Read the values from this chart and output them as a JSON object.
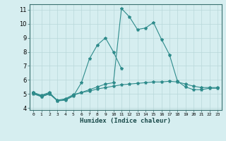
{
  "xlabel": "Humidex (Indice chaleur)",
  "ylabel": "",
  "bg_color": "#d6eef0",
  "grid_color": "#b8d8da",
  "line_color": "#2e8b8b",
  "xlim": [
    -0.5,
    23.5
  ],
  "ylim": [
    3.85,
    11.4
  ],
  "yticks": [
    4,
    5,
    6,
    7,
    8,
    9,
    10,
    11
  ],
  "xticks": [
    0,
    1,
    2,
    3,
    4,
    5,
    6,
    7,
    8,
    9,
    10,
    11,
    12,
    13,
    14,
    15,
    16,
    17,
    18,
    19,
    20,
    21,
    22,
    23
  ],
  "series": [
    {
      "x": [
        0,
        1,
        2
      ],
      "y": [
        5.1,
        4.8,
        5.0
      ]
    },
    {
      "x": [
        0,
        1,
        2,
        3,
        4,
        5,
        6,
        7,
        8,
        9,
        10,
        11
      ],
      "y": [
        5.0,
        4.8,
        5.0,
        4.5,
        4.55,
        4.85,
        5.8,
        7.5,
        8.5,
        9.0,
        8.0,
        6.8
      ]
    },
    {
      "x": [
        0,
        1,
        2,
        3,
        4,
        5,
        6,
        7,
        8,
        9,
        10,
        11,
        12,
        13,
        14,
        15,
        16,
        17,
        18,
        19,
        20,
        21,
        22,
        23
      ],
      "y": [
        5.05,
        4.85,
        5.05,
        4.55,
        4.65,
        4.95,
        5.1,
        5.2,
        5.35,
        5.45,
        5.55,
        5.65,
        5.7,
        5.75,
        5.8,
        5.85,
        5.85,
        5.9,
        5.85,
        5.7,
        5.55,
        5.45,
        5.45,
        5.45
      ]
    },
    {
      "x": [
        0,
        1,
        2,
        3,
        4,
        5,
        6,
        7,
        8,
        9,
        10,
        11,
        12,
        13,
        14,
        15,
        16,
        17,
        18,
        19,
        20,
        21,
        22,
        23
      ],
      "y": [
        5.1,
        4.9,
        5.1,
        4.5,
        4.6,
        4.9,
        5.1,
        5.3,
        5.5,
        5.7,
        5.8,
        11.1,
        10.5,
        9.6,
        9.7,
        10.1,
        8.9,
        7.8,
        5.9,
        5.5,
        5.3,
        5.3,
        5.4,
        5.4
      ]
    }
  ]
}
